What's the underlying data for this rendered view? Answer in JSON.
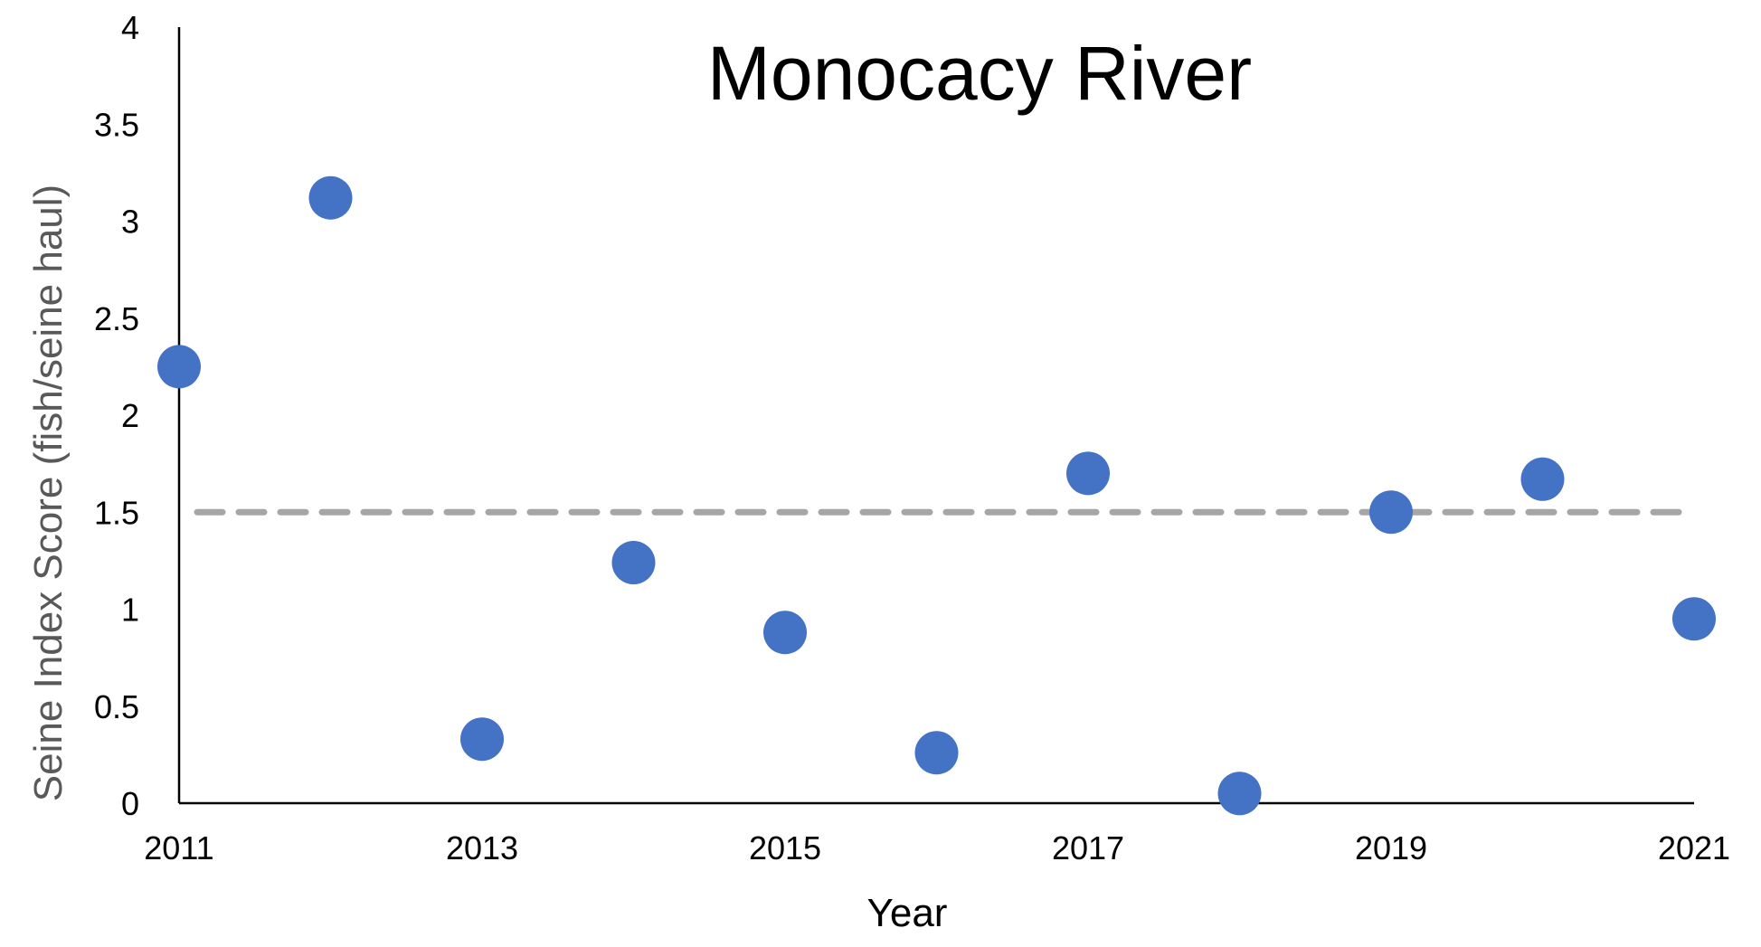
{
  "chart_data": {
    "type": "scatter",
    "title": "Monocacy River",
    "xlabel": "Year",
    "ylabel": "Seine Index Score (fish/seine haul)",
    "xlim": [
      2011,
      2021
    ],
    "ylim": [
      0,
      4
    ],
    "x_ticks": [
      "2011",
      "2013",
      "2015",
      "2017",
      "2019",
      "2021"
    ],
    "y_ticks": [
      "0",
      "0.5",
      "1",
      "1.5",
      "2",
      "2.5",
      "3",
      "3.5",
      "4"
    ],
    "grid": false,
    "legend": "none",
    "series": [
      {
        "x": [
          2011,
          2012,
          2013,
          2014,
          2015,
          2016,
          2017,
          2018,
          2019,
          2020,
          2021
        ],
        "y": [
          2.25,
          3.12,
          0.33,
          1.24,
          0.88,
          0.26,
          1.7,
          0.05,
          1.5,
          1.67,
          0.95
        ],
        "color": "#4472C4"
      }
    ],
    "reference_line": {
      "y": 1.5,
      "style": "dashed",
      "color": "#A6A6A6"
    },
    "axis_color": "#000000"
  }
}
